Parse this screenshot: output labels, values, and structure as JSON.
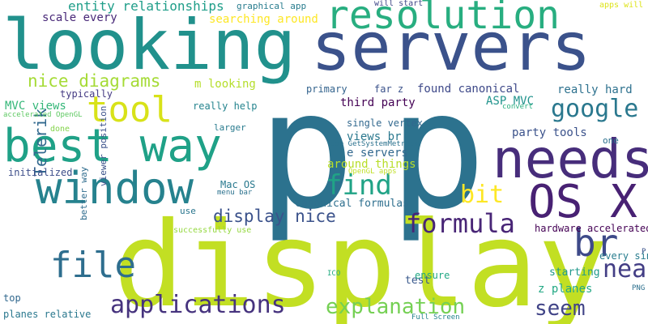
{
  "words": [
    {
      "text": "p",
      "color": "#2c728e"
    },
    {
      "text": "p",
      "color": "#2c728e"
    },
    {
      "text": "display",
      "color": "#c2df23"
    },
    {
      "text": "servers",
      "color": "#3b528b"
    },
    {
      "text": "looking",
      "color": "#21918c"
    },
    {
      "text": "resolution",
      "color": "#28ae80"
    },
    {
      "text": "best way",
      "color": "#1fa187"
    },
    {
      "text": "needs",
      "color": "#472d7b"
    },
    {
      "text": "window",
      "color": "#26828e"
    },
    {
      "text": "OS X",
      "color": "#482173"
    },
    {
      "text": "tool",
      "color": "#d8e219"
    },
    {
      "text": "file",
      "color": "#2e6e8e"
    },
    {
      "text": "br",
      "color": "#3e4a89"
    },
    {
      "text": "google",
      "color": "#2a788e"
    },
    {
      "text": "find",
      "color": "#20a386"
    },
    {
      "text": "formula",
      "color": "#482576"
    },
    {
      "text": "applications",
      "color": "#46337e"
    },
    {
      "text": "explanation",
      "color": "#75d054"
    },
    {
      "text": "seem",
      "color": "#414487"
    },
    {
      "text": "display nice",
      "color": "#3b528b"
    },
    {
      "text": "Telerik",
      "color": "#31688e"
    },
    {
      "text": "near",
      "color": "#433e85"
    },
    {
      "text": "bit",
      "color": "#fde725"
    },
    {
      "text": "nice diagrams",
      "color": "#a5db36"
    },
    {
      "text": "entity relationships",
      "color": "#1f9e89"
    },
    {
      "text": "searching around",
      "color": "#fde725"
    },
    {
      "text": "graphical app",
      "color": "#287c8e"
    },
    {
      "text": "will start",
      "color": "#3f4788"
    },
    {
      "text": "apps will",
      "color": "#dde318"
    },
    {
      "text": "scale every",
      "color": "#482878"
    },
    {
      "text": "typically",
      "color": "#443a83"
    },
    {
      "text": "m looking",
      "color": "#b5de2b"
    },
    {
      "text": "primary",
      "color": "#33638d"
    },
    {
      "text": "far z",
      "color": "#3b528b"
    },
    {
      "text": "found canonical",
      "color": "#3e4989"
    },
    {
      "text": "really hard",
      "color": "#2d718e"
    },
    {
      "text": "ASP MVC",
      "color": "#20938c"
    },
    {
      "text": "MVC views",
      "color": "#35b779"
    },
    {
      "text": "third party",
      "color": "#440154"
    },
    {
      "text": "really help",
      "color": "#25848e"
    },
    {
      "text": "accelerated OpenGL",
      "color": "#5ec962"
    },
    {
      "text": "convert",
      "color": "#29af7f"
    },
    {
      "text": "done",
      "color": "#84d44b"
    },
    {
      "text": "larger",
      "color": "#297b8e"
    },
    {
      "text": "single vertex",
      "color": "#31688e"
    },
    {
      "text": "views br",
      "color": "#2a788e"
    },
    {
      "text": "party tools",
      "color": "#3b528b"
    },
    {
      "text": "use GetSystemMetrics",
      "color": "#2c728e"
    },
    {
      "text": "one",
      "color": "#2d708e"
    },
    {
      "text": "e servers",
      "color": "#31688e"
    },
    {
      "text": "around things",
      "color": "#b8de29"
    },
    {
      "text": "initialized",
      "color": "#3d4e8a"
    },
    {
      "text": "OpenGL apps",
      "color": "#c0df25"
    },
    {
      "text": "Mac OS",
      "color": "#29798e"
    },
    {
      "text": "menu bar",
      "color": "#2c728e"
    },
    {
      "text": "canonical formulas",
      "color": "#2e6f8e"
    },
    {
      "text": "use",
      "color": "#2a768e"
    },
    {
      "text": "hardware accelerated",
      "color": "#440154"
    },
    {
      "text": "better way",
      "color": "#2f6c8e"
    },
    {
      "text": "successfully use",
      "color": "#95d840"
    },
    {
      "text": "viewer position",
      "color": "#3b528b"
    },
    {
      "text": "test",
      "color": "#38588c"
    },
    {
      "text": "ICO",
      "color": "#25ac82"
    },
    {
      "text": "ensure",
      "color": "#22a884"
    },
    {
      "text": "z planes",
      "color": "#22a884"
    },
    {
      "text": "starting",
      "color": "#1f988b"
    },
    {
      "text": "every single",
      "color": "#287d8e"
    },
    {
      "text": "PNG",
      "color": "#2d708e"
    },
    {
      "text": "top",
      "color": "#31688e"
    },
    {
      "text": "planes relative",
      "color": "#2a788e"
    },
    {
      "text": "Full Screen",
      "color": "#25848e"
    },
    {
      "text": "P",
      "color": "#3b528b"
    }
  ]
}
